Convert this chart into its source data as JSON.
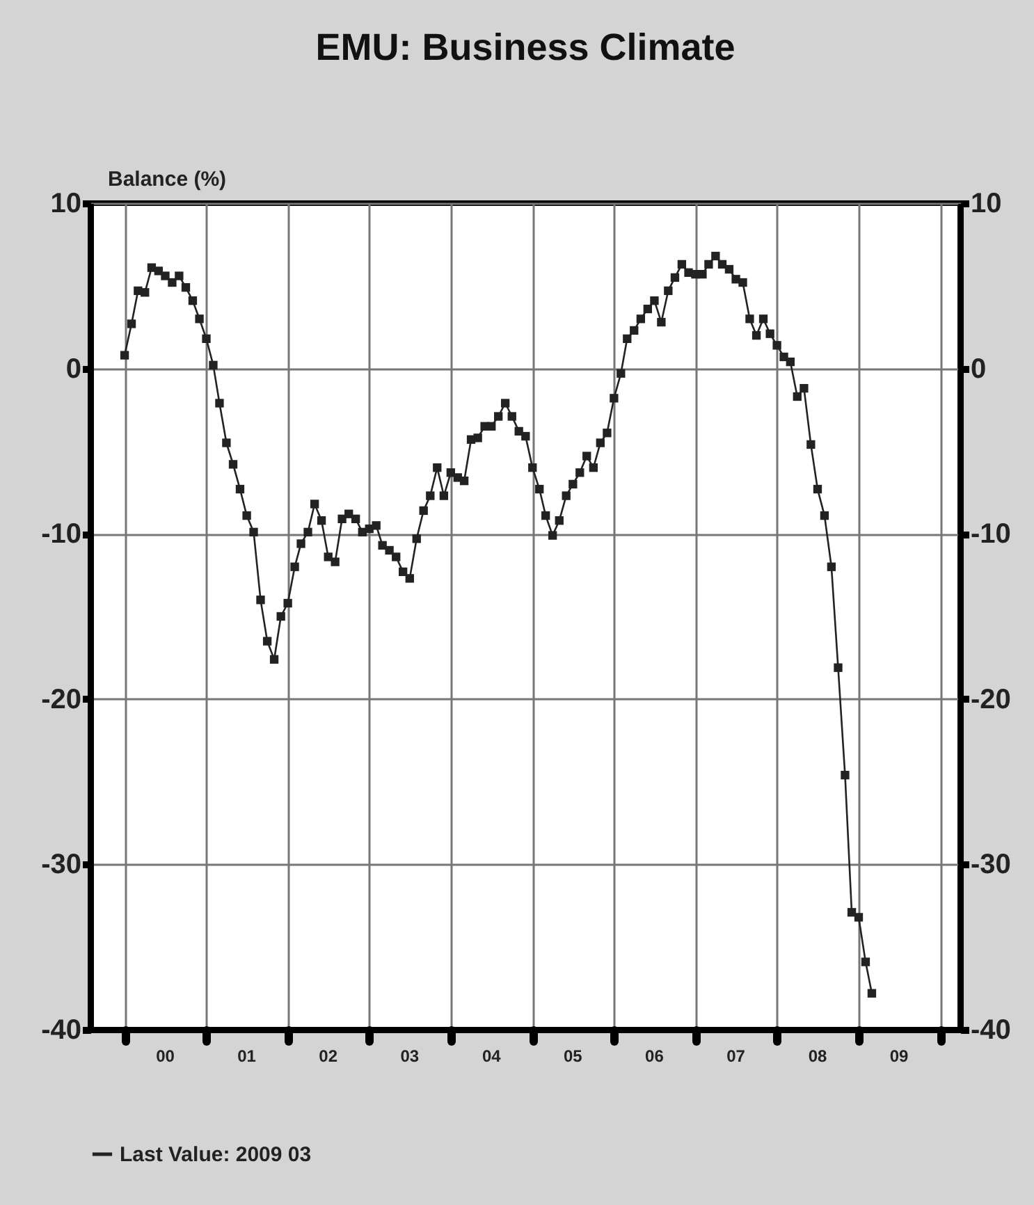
{
  "chart_data": {
    "type": "line",
    "title": "EMU: Business Climate",
    "ylabel": "Balance (%)",
    "x": [
      "2000-01",
      "2000-02",
      "2000-03",
      "2000-04",
      "2000-05",
      "2000-06",
      "2000-07",
      "2000-08",
      "2000-09",
      "2000-10",
      "2000-11",
      "2000-12",
      "2001-01",
      "2001-02",
      "2001-03",
      "2001-04",
      "2001-05",
      "2001-06",
      "2001-07",
      "2001-08",
      "2001-09",
      "2001-10",
      "2001-11",
      "2001-12",
      "2002-01",
      "2002-02",
      "2002-03",
      "2002-04",
      "2002-05",
      "2002-06",
      "2002-07",
      "2002-08",
      "2002-09",
      "2002-10",
      "2002-11",
      "2002-12",
      "2003-01",
      "2003-02",
      "2003-03",
      "2003-04",
      "2003-05",
      "2003-06",
      "2003-07",
      "2003-08",
      "2003-09",
      "2003-10",
      "2003-11",
      "2003-12",
      "2004-01",
      "2004-02",
      "2004-03",
      "2004-04",
      "2004-05",
      "2004-06",
      "2004-07",
      "2004-08",
      "2004-09",
      "2004-10",
      "2004-11",
      "2004-12",
      "2005-01",
      "2005-02",
      "2005-03",
      "2005-04",
      "2005-05",
      "2005-06",
      "2005-07",
      "2005-08",
      "2005-09",
      "2005-10",
      "2005-11",
      "2005-12",
      "2006-01",
      "2006-02",
      "2006-03",
      "2006-04",
      "2006-05",
      "2006-06",
      "2006-07",
      "2006-08",
      "2006-09",
      "2006-10",
      "2006-11",
      "2006-12",
      "2007-01",
      "2007-02",
      "2007-03",
      "2007-04",
      "2007-05",
      "2007-06",
      "2007-07",
      "2007-08",
      "2007-09",
      "2007-10",
      "2007-11",
      "2007-12",
      "2008-01",
      "2008-02",
      "2008-03",
      "2008-04",
      "2008-05",
      "2008-06",
      "2008-07",
      "2008-08",
      "2008-09",
      "2008-10",
      "2008-11",
      "2008-12",
      "2009-01",
      "2009-02",
      "2009-03"
    ],
    "series": [
      {
        "name": "Last Value: 2009 03",
        "color": "#222222",
        "values": [
          0.8,
          2.7,
          4.7,
          4.6,
          6.1,
          5.9,
          5.6,
          5.2,
          5.6,
          4.9,
          4.1,
          3.0,
          1.8,
          0.2,
          -2.1,
          -4.5,
          -5.8,
          -7.3,
          -8.9,
          -9.9,
          -14.0,
          -16.5,
          -17.6,
          -15.0,
          -14.2,
          -12.0,
          -10.6,
          -9.9,
          -8.2,
          -9.2,
          -11.4,
          -11.7,
          -9.1,
          -8.8,
          -9.1,
          -9.9,
          -9.7,
          -9.5,
          -10.7,
          -11.0,
          -11.4,
          -12.3,
          -12.7,
          -10.3,
          -8.6,
          -7.7,
          -6.0,
          -7.7,
          -6.3,
          -6.6,
          -6.8,
          -4.3,
          -4.2,
          -3.5,
          -3.5,
          -2.9,
          -2.1,
          -2.9,
          -3.8,
          -4.1,
          -6.0,
          -7.3,
          -8.9,
          -10.1,
          -9.2,
          -7.7,
          -7.0,
          -6.3,
          -5.3,
          -6.0,
          -4.5,
          -3.9,
          -1.8,
          -0.3,
          1.8,
          2.3,
          3.0,
          3.6,
          4.1,
          2.8,
          4.7,
          5.5,
          6.3,
          5.8,
          5.7,
          5.7,
          6.3,
          6.8,
          6.3,
          6.0,
          5.4,
          5.2,
          3.0,
          2.0,
          3.0,
          2.1,
          1.4,
          0.7,
          0.4,
          -1.7,
          -1.2,
          -4.6,
          -7.3,
          -8.9,
          -12.0,
          -18.1,
          -24.6,
          -32.9,
          -33.2,
          -35.9,
          -37.8
        ]
      }
    ],
    "xlim": [
      "1999-08",
      "2010-04"
    ],
    "xticks": [
      {
        "value": "2000-01",
        "label": null
      },
      {
        "value": "2000-07",
        "label": "00"
      },
      {
        "value": "2001-01",
        "label": null
      },
      {
        "value": "2001-07",
        "label": "01"
      },
      {
        "value": "2002-01",
        "label": null
      },
      {
        "value": "2002-07",
        "label": "02"
      },
      {
        "value": "2003-01",
        "label": null
      },
      {
        "value": "2003-07",
        "label": "03"
      },
      {
        "value": "2004-01",
        "label": null
      },
      {
        "value": "2004-07",
        "label": "04"
      },
      {
        "value": "2005-01",
        "label": null
      },
      {
        "value": "2005-07",
        "label": "05"
      },
      {
        "value": "2006-01",
        "label": null
      },
      {
        "value": "2006-07",
        "label": "06"
      },
      {
        "value": "2007-01",
        "label": null
      },
      {
        "value": "2007-07",
        "label": "07"
      },
      {
        "value": "2008-01",
        "label": null
      },
      {
        "value": "2008-07",
        "label": "08"
      },
      {
        "value": "2009-01",
        "label": null
      },
      {
        "value": "2009-07",
        "label": "09"
      },
      {
        "value": "2010-01",
        "label": null
      }
    ],
    "ylim": [
      -40,
      10
    ],
    "yticks": [
      -40,
      -30,
      -20,
      -10,
      0,
      10
    ],
    "y2lim": [
      -40,
      10
    ],
    "y2ticks": [
      -40,
      -30,
      -20,
      -10,
      0,
      10
    ],
    "grid": true,
    "legend": "bottom",
    "marker": "square",
    "line_style": "solid"
  }
}
